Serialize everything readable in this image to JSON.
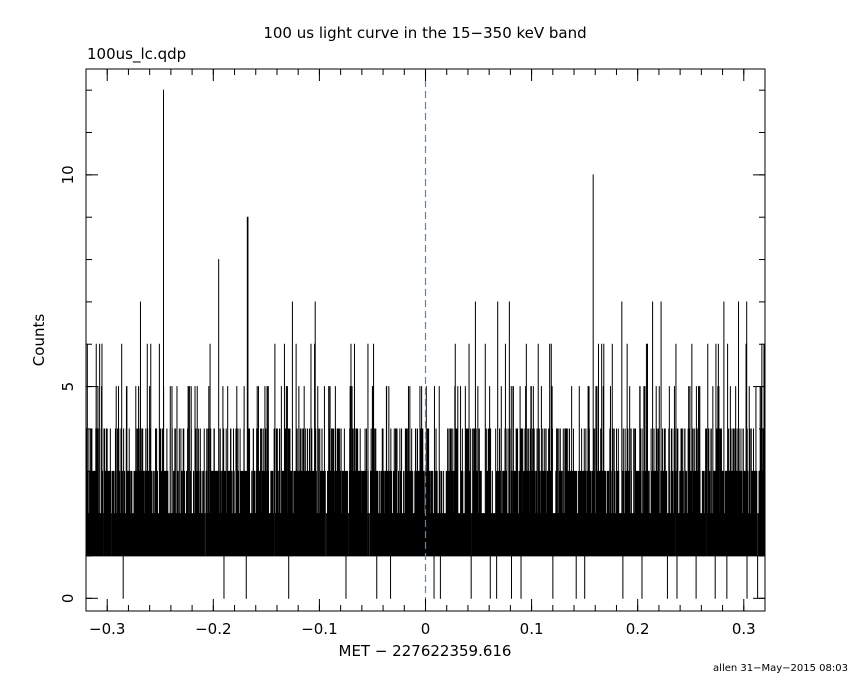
{
  "chart_data": {
    "type": "line",
    "title": "100 us light curve in the 15−350 keV band",
    "file_label": "100us_lc.qdp",
    "xlabel": "MET − 227622359.616",
    "ylabel": "Counts",
    "footer": "allen 31−May−2015 08:03",
    "xlim": [
      -0.32,
      0.32
    ],
    "ylim": [
      -0.3,
      12.5
    ],
    "x_ticks": [
      -0.3,
      -0.2,
      -0.1,
      0,
      0.1,
      0.2,
      0.3
    ],
    "x_tick_labels": [
      "−0.3",
      "−0.2",
      "−0.1",
      "0",
      "0.1",
      "0.2",
      "0.3"
    ],
    "y_ticks": [
      0,
      5,
      10
    ],
    "y_tick_labels": [
      "0",
      "5",
      "10"
    ],
    "bin_width": 0.0001,
    "series": [
      {
        "name": "",
        "color": "#000000",
        "style": "histogram-step"
      }
    ],
    "peaks": [
      {
        "x": -0.247,
        "y": 12
      },
      {
        "x": -0.195,
        "y": 8
      },
      {
        "x": -0.168,
        "y": 9
      },
      {
        "x": -0.259,
        "y": 6
      },
      {
        "x": -0.305,
        "y": 6
      },
      {
        "x": 0.158,
        "y": 10
      },
      {
        "x": 0.068,
        "y": 7
      },
      {
        "x": 0.079,
        "y": 7
      },
      {
        "x": 0.185,
        "y": 7
      },
      {
        "x": 0.214,
        "y": 7
      },
      {
        "x": 0.222,
        "y": 7
      },
      {
        "x": 0.295,
        "y": 7
      },
      {
        "x": -0.142,
        "y": 6
      },
      {
        "x": -0.108,
        "y": 6
      },
      {
        "x": -0.067,
        "y": 6
      },
      {
        "x": -0.049,
        "y": 6
      },
      {
        "x": 0.028,
        "y": 6
      },
      {
        "x": 0.041,
        "y": 6
      },
      {
        "x": 0.095,
        "y": 6
      },
      {
        "x": 0.117,
        "y": 6
      },
      {
        "x": 0.176,
        "y": 6
      },
      {
        "x": 0.19,
        "y": 6
      },
      {
        "x": 0.236,
        "y": 6
      },
      {
        "x": 0.251,
        "y": 6
      },
      {
        "x": 0.266,
        "y": 6
      },
      {
        "x": 0.276,
        "y": 6
      },
      {
        "x": 0.317,
        "y": 6
      },
      {
        "x": 0.319,
        "y": 6
      }
    ],
    "gaps": [
      -0.285,
      -0.195,
      -0.19,
      -0.169,
      -0.129,
      -0.075,
      -0.046,
      -0.033,
      0.008,
      0.014,
      0.043,
      0.061,
      0.067,
      0.081,
      0.09,
      0.12,
      0.142,
      0.15,
      0.176,
      0.186,
      0.204,
      0.228,
      0.237,
      0.255,
      0.273,
      0.284,
      0.303,
      0.313
    ],
    "reference_line": {
      "x": 0,
      "color": "#3a8fcf",
      "style": "dashed"
    }
  }
}
